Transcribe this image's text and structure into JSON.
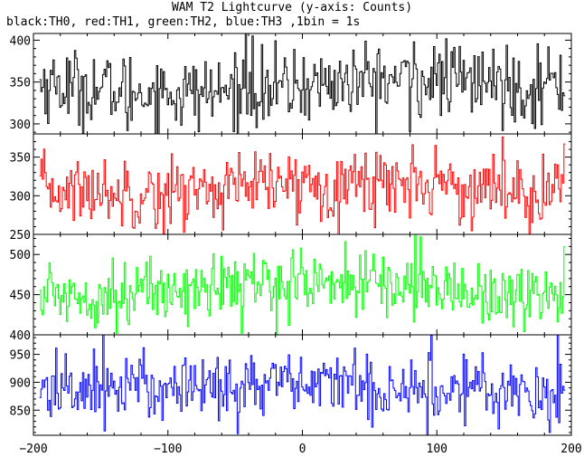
{
  "title": "WAM T2 Lightcurve (y-axis: Counts)",
  "subtitle": "black:TH0, red:TH1, green:TH2, blue:TH3 ,1bin = 1s",
  "chart_data": {
    "type": "line",
    "title": "WAM T2 Lightcurve (y-axis: Counts)",
    "subtitle": "black:TH0, red:TH1, green:TH2, blue:TH3 ,1bin = 1s",
    "xlabel": "",
    "ylabel": "Counts",
    "bin_seconds": 1,
    "x_range": [
      -200,
      200
    ],
    "x_data_range": [
      -195,
      195
    ],
    "x_ticks": [
      -200,
      -100,
      0,
      100,
      200
    ],
    "x_tick_labels": [
      "−200",
      "−100",
      "0",
      "100",
      "200"
    ],
    "grid": false,
    "legend": "subtitle text",
    "panels": [
      {
        "name": "TH0",
        "color": "#000000",
        "ylim": [
          288,
          408
        ],
        "yticks": [
          300,
          350,
          400
        ],
        "mean": 345,
        "noise_amplitude": 22,
        "drift": 8,
        "spikes": [
          {
            "x": -42,
            "y": 410
          },
          {
            "x": -37,
            "y": 405
          },
          {
            "x": 83,
            "y": 398
          },
          {
            "x": 183,
            "y": 392
          }
        ],
        "dips": [
          {
            "x": -130,
            "y": 292
          },
          {
            "x": 80,
            "y": 291
          }
        ]
      },
      {
        "name": "TH1",
        "color": "#ff0000",
        "ylim": [
          250,
          380
        ],
        "yticks": [
          250,
          300,
          350
        ],
        "mean": 311,
        "noise_amplitude": 22,
        "drift": 6,
        "spikes": [
          {
            "x": 82,
            "y": 366
          },
          {
            "x": 99,
            "y": 365
          },
          {
            "x": 195,
            "y": 367
          }
        ],
        "dips": [
          {
            "x": -103,
            "y": 251
          },
          {
            "x": 117,
            "y": 262
          }
        ]
      },
      {
        "name": "TH2",
        "color": "#00ff00",
        "ylim": [
          400,
          525
        ],
        "yticks": [
          400,
          450,
          500
        ],
        "mean": 458,
        "noise_amplitude": 20,
        "drift": 8,
        "spikes": [
          {
            "x": 84,
            "y": 528
          },
          {
            "x": 88,
            "y": 522
          },
          {
            "x": 195,
            "y": 510
          }
        ],
        "dips": [
          {
            "x": -45,
            "y": 402
          },
          {
            "x": 165,
            "y": 404
          }
        ]
      },
      {
        "name": "TH3",
        "color": "#0000ff",
        "ylim": [
          805,
          985
        ],
        "yticks": [
          850,
          900,
          950
        ],
        "mean": 892,
        "noise_amplitude": 30,
        "drift": 5,
        "spikes": [
          {
            "x": -148,
            "y": 985
          },
          {
            "x": 96,
            "y": 984
          },
          {
            "x": 190,
            "y": 985
          }
        ],
        "dips": [
          {
            "x": -48,
            "y": 808
          },
          {
            "x": 184,
            "y": 810
          }
        ]
      }
    ]
  }
}
